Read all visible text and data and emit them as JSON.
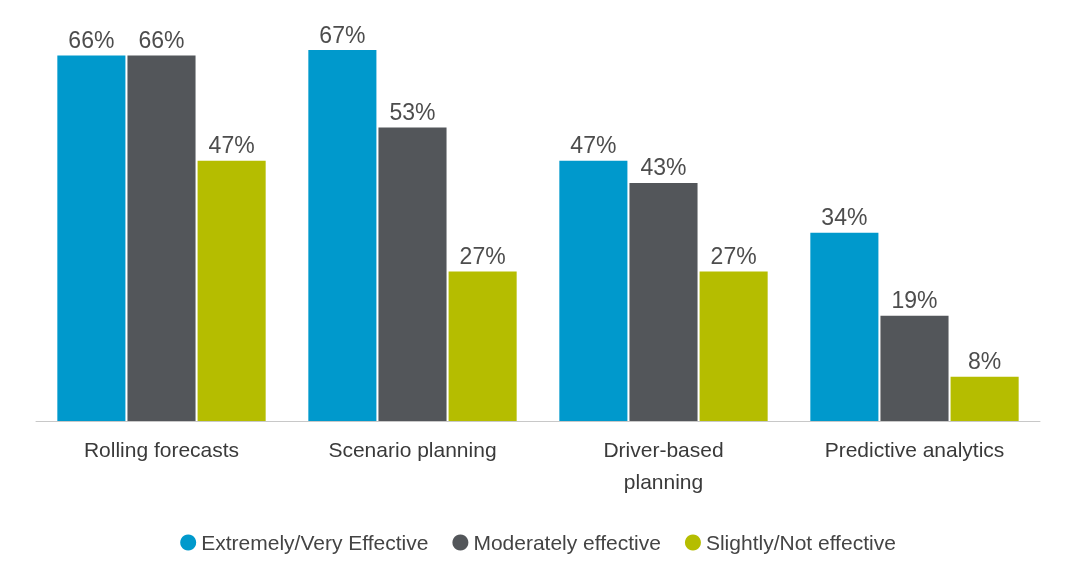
{
  "chart_data": {
    "type": "bar",
    "categories": [
      "Rolling forecasts",
      "Scenario planning",
      "Driver-based\nplanning",
      "Predictive analytics"
    ],
    "series": [
      {
        "name": "Extremely/Very Effective",
        "color": "#0099cc",
        "values": [
          66,
          67,
          47,
          34
        ],
        "value_labels": [
          "66%",
          "67%",
          "47%",
          "34%"
        ]
      },
      {
        "name": "Moderately effective",
        "color": "#53565a",
        "values": [
          66,
          53,
          43,
          19
        ],
        "value_labels": [
          "66%",
          "53%",
          "43%",
          "19%"
        ]
      },
      {
        "name": "Slightly/Not effective",
        "color": "#b5bd00",
        "values": [
          47,
          27,
          27,
          8
        ],
        "value_labels": [
          "47%",
          "27%",
          "27%",
          "8%"
        ]
      }
    ],
    "legend": "bottom",
    "grid": false
  }
}
